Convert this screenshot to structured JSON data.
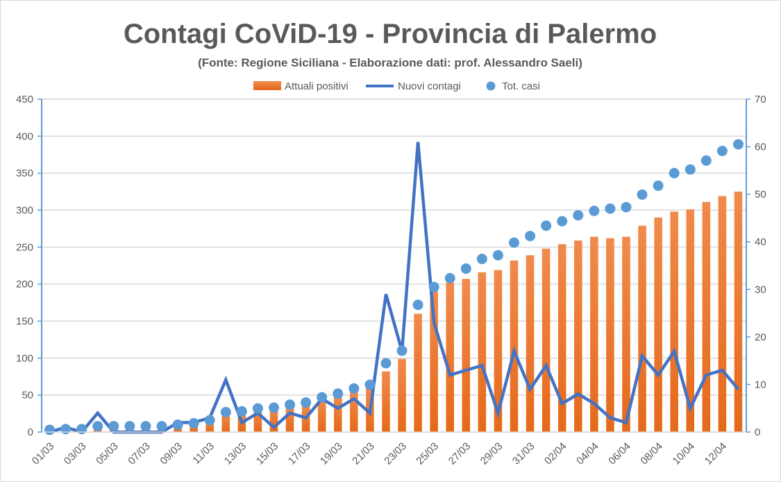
{
  "chart_data": {
    "type": "bar",
    "title": "Contagi CoViD-19 - Provincia di Palermo",
    "subtitle": "(Fonte: Regione Siciliana - Elaborazione dati: prof. Alessandro Saeli)",
    "xlabel": "",
    "ylabel": "",
    "y2label": "",
    "ylim": [
      0,
      450
    ],
    "y2lim": [
      0,
      70
    ],
    "yticks": [
      "0",
      "50",
      "100",
      "150",
      "200",
      "250",
      "300",
      "350",
      "400",
      "450"
    ],
    "y2ticks": [
      "0",
      "10",
      "20",
      "30",
      "40",
      "50",
      "60",
      "70"
    ],
    "grid": true,
    "legend_position": "top",
    "categories": [
      "01/03",
      "02/03",
      "03/03",
      "04/03",
      "05/03",
      "06/03",
      "07/03",
      "08/03",
      "09/03",
      "10/03",
      "11/03",
      "12/03",
      "13/03",
      "14/03",
      "15/03",
      "16/03",
      "17/03",
      "18/03",
      "19/03",
      "20/03",
      "21/03",
      "22/03",
      "23/03",
      "24/03",
      "25/03",
      "26/03",
      "27/03",
      "28/03",
      "29/03",
      "30/03",
      "31/03",
      "01/04",
      "02/04",
      "03/04",
      "04/04",
      "05/04",
      "06/04",
      "07/04",
      "08/04",
      "09/04",
      "10/04",
      "11/04",
      "12/04",
      "13/04"
    ],
    "xtick_labels": [
      "01/03",
      "03/03",
      "05/03",
      "07/03",
      "09/03",
      "11/03",
      "13/03",
      "15/03",
      "17/03",
      "19/03",
      "21/03",
      "23/03",
      "25/03",
      "27/03",
      "29/03",
      "31/03",
      "02/04",
      "04/04",
      "06/04",
      "08/04",
      "10/04",
      "12/04"
    ],
    "series": [
      {
        "name": "Attuali positivi",
        "type": "bar",
        "axis": "left",
        "color": "#ed7d31",
        "values": [
          2,
          3,
          3,
          7,
          7,
          7,
          7,
          7,
          9,
          11,
          15,
          25,
          26,
          30,
          31,
          35,
          38,
          44,
          49,
          55,
          60,
          82,
          99,
          160,
          190,
          202,
          207,
          216,
          219,
          232,
          239,
          248,
          254,
          259,
          264,
          262,
          264,
          279,
          290,
          298,
          301,
          311,
          319,
          325
        ]
      },
      {
        "name": "Nuovi contagi",
        "type": "line",
        "axis": "right",
        "color": "#4472c4",
        "values": [
          0,
          1,
          0,
          4,
          0,
          0,
          0,
          0,
          2,
          2,
          3,
          11,
          2,
          4,
          1,
          4,
          3,
          7,
          5,
          7,
          4,
          29,
          17,
          61,
          23,
          12,
          13,
          14,
          4,
          17,
          9,
          14,
          6,
          8,
          6,
          3,
          2,
          16,
          12,
          17,
          5,
          12,
          13,
          9
        ]
      },
      {
        "name": "Tot. casi",
        "type": "scatter",
        "axis": "left",
        "color": "#5b9bd5",
        "values": [
          3,
          4,
          4,
          8,
          8,
          8,
          8,
          8,
          10,
          12,
          16,
          27,
          28,
          32,
          33,
          37,
          40,
          47,
          52,
          59,
          64,
          93,
          110,
          172,
          196,
          208,
          221,
          234,
          239,
          256,
          265,
          279,
          285,
          293,
          299,
          302,
          304,
          321,
          333,
          350,
          355,
          367,
          380,
          389
        ]
      }
    ]
  }
}
